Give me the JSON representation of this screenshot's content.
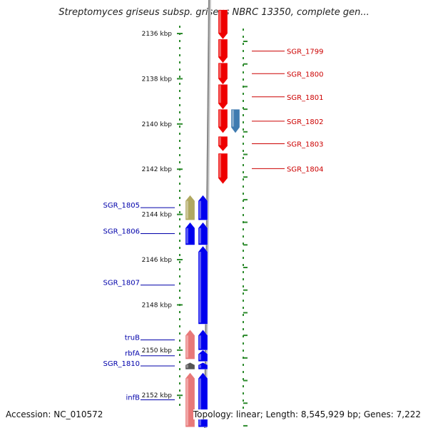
{
  "title": "Streptomyces griseus subsp. griseus NBRC 13350, complete gen...",
  "footer": {
    "accession": "Accession: NC_010572",
    "topology": "Topology: linear; Length: 8,545,929 bp; Genes: 7,222"
  },
  "colors": {
    "red_gene": "#ee0000",
    "blue_gene": "#0000ee",
    "pink_gene": "#e87878",
    "steelblue_gene": "#3f7bb0",
    "olive_gene": "#b0a860",
    "gray_gene": "#555555",
    "ruler": "#2e8b2e",
    "backbone": "#888888",
    "red_label": "#cc0000",
    "blue_label": "#0000aa"
  },
  "ruler_ticks": [
    {
      "kbp": 2136,
      "label": "2136 kbp"
    },
    {
      "kbp": 2138,
      "label": "2138 kbp"
    },
    {
      "kbp": 2140,
      "label": "2140 kbp"
    },
    {
      "kbp": 2142,
      "label": "2142 kbp"
    },
    {
      "kbp": 2144,
      "label": "2144 kbp"
    },
    {
      "kbp": 2146,
      "label": "2146 kbp"
    },
    {
      "kbp": 2148,
      "label": "2148 kbp"
    },
    {
      "kbp": 2150,
      "label": "2150 kbp"
    },
    {
      "kbp": 2152,
      "label": "2152 kbp"
    }
  ],
  "genes": [
    {
      "name": "",
      "start": 2134.95,
      "end": 2136.25,
      "track": "top-red-1",
      "color": "red_gene",
      "dir": "down"
    },
    {
      "name": "SGR_1799",
      "start": 2136.25,
      "end": 2137.3,
      "track": "top-red-1",
      "color": "red_gene",
      "dir": "down"
    },
    {
      "name": "SGR_1800",
      "start": 2137.3,
      "end": 2138.25,
      "track": "top-red-1",
      "color": "red_gene",
      "dir": "down"
    },
    {
      "name": "SGR_1801",
      "start": 2138.25,
      "end": 2139.35,
      "track": "top-red-1",
      "color": "red_gene",
      "dir": "down"
    },
    {
      "name": "SGR_1802",
      "start": 2139.35,
      "end": 2140.4,
      "track": "top-red-1",
      "color": "red_gene",
      "dir": "down"
    },
    {
      "name": "",
      "start": 2139.35,
      "end": 2140.4,
      "track": "top-red-2",
      "color": "steelblue_gene",
      "dir": "down"
    },
    {
      "name": "SGR_1803",
      "start": 2140.55,
      "end": 2141.2,
      "track": "top-red-1",
      "color": "red_gene",
      "dir": "down"
    },
    {
      "name": "SGR_1804",
      "start": 2141.3,
      "end": 2142.65,
      "track": "top-red-1",
      "color": "red_gene",
      "dir": "down"
    },
    {
      "name": "SGR_1805",
      "start": 2143.15,
      "end": 2144.25,
      "track": "bottom-2",
      "color": "olive_gene",
      "dir": "up"
    },
    {
      "name": "",
      "start": 2143.15,
      "end": 2144.25,
      "track": "bottom-1",
      "color": "blue_gene",
      "dir": "up"
    },
    {
      "name": "SGR_1806",
      "start": 2144.35,
      "end": 2145.35,
      "track": "bottom-2",
      "color": "blue_gene",
      "dir": "up"
    },
    {
      "name": "",
      "start": 2144.35,
      "end": 2145.35,
      "track": "bottom-1",
      "color": "blue_gene",
      "dir": "up"
    },
    {
      "name": "SGR_1807",
      "start": 2145.4,
      "end": 2148.85,
      "track": "bottom-1",
      "color": "blue_gene",
      "dir": "up"
    },
    {
      "name": "truB",
      "start": 2149.1,
      "end": 2150.0,
      "track": "bottom-1",
      "color": "blue_gene",
      "dir": "up"
    },
    {
      "name": "",
      "start": 2149.1,
      "end": 2150.4,
      "track": "bottom-2",
      "color": "pink_gene",
      "dir": "up"
    },
    {
      "name": "rbfA",
      "start": 2150.0,
      "end": 2150.5,
      "track": "bottom-1",
      "color": "blue_gene",
      "dir": "up"
    },
    {
      "name": "SGR_1810",
      "start": 2150.55,
      "end": 2150.85,
      "track": "bottom-2",
      "color": "gray_gene",
      "dir": "up"
    },
    {
      "name": "",
      "start": 2150.55,
      "end": 2150.85,
      "track": "bottom-1",
      "color": "blue_gene",
      "dir": "up"
    },
    {
      "name": "infB",
      "start": 2151.0,
      "end": 2153.4,
      "track": "bottom-2",
      "color": "pink_gene",
      "dir": "up"
    },
    {
      "name": "",
      "start": 2151.0,
      "end": 2153.4,
      "track": "bottom-1",
      "color": "blue_gene",
      "dir": "up"
    }
  ]
}
